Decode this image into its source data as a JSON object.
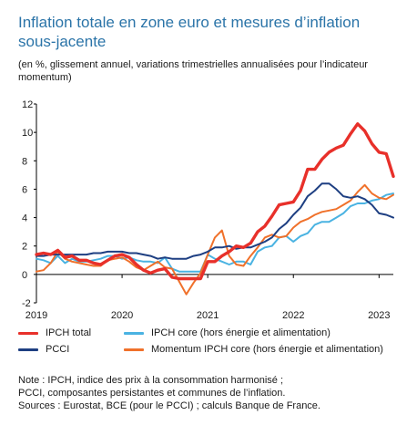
{
  "title": "Inflation totale en zone euro et mesures d’inflation sous-jacente",
  "subtitle": "(en %, glissement annuel, variations trimestrielles annualisées pour l’indicateur momentum)",
  "note_line1": "Note : IPCH, indice des prix à la consommation harmonisé ;",
  "note_line2": "PCCI, composantes persistantes et communes de l’inflation.",
  "sources": "Sources : Eurostat, BCE (pour le PCCI) ; calculs Banque de France.",
  "colors": {
    "ipch_total": "#e8302a",
    "pcci": "#1e3f82",
    "ipch_core": "#4ab3e2",
    "momentum": "#f0712b",
    "axis": "#000000"
  },
  "chart_data": {
    "type": "line",
    "x_start": "2019-01",
    "x_step": "month",
    "x_tick_labels": [
      "2019",
      "2020",
      "2021",
      "2022",
      "2023"
    ],
    "y_ticks": [
      -2,
      0,
      2,
      4,
      6,
      8,
      10,
      12
    ],
    "ylim": [
      -2,
      12
    ],
    "series": [
      {
        "name": "IPCH total",
        "color": "#e8302a",
        "values": [
          1.4,
          1.5,
          1.4,
          1.7,
          1.2,
          1.3,
          1.0,
          1.0,
          0.8,
          0.7,
          1.0,
          1.3,
          1.4,
          1.2,
          0.7,
          0.3,
          0.1,
          0.3,
          0.4,
          -0.2,
          -0.3,
          -0.3,
          -0.3,
          -0.3,
          0.9,
          0.9,
          1.3,
          1.6,
          2.0,
          1.9,
          2.2,
          3.0,
          3.4,
          4.1,
          4.9,
          5.0,
          5.1,
          5.9,
          7.4,
          7.4,
          8.1,
          8.6,
          8.9,
          9.1,
          9.9,
          10.6,
          10.1,
          9.2,
          8.6,
          8.5,
          6.9
        ]
      },
      {
        "name": "PCCI",
        "color": "#1e3f82",
        "values": [
          1.3,
          1.3,
          1.4,
          1.4,
          1.4,
          1.4,
          1.4,
          1.4,
          1.5,
          1.5,
          1.6,
          1.6,
          1.6,
          1.5,
          1.5,
          1.4,
          1.3,
          1.1,
          1.2,
          1.1,
          1.1,
          1.1,
          1.3,
          1.4,
          1.6,
          1.9,
          1.9,
          2.0,
          1.8,
          1.9,
          1.9,
          2.1,
          2.3,
          2.6,
          3.2,
          3.6,
          4.2,
          4.7,
          5.5,
          5.9,
          6.4,
          6.4,
          6.0,
          5.5,
          5.4,
          5.5,
          5.3,
          4.9,
          4.3,
          4.2,
          4.0
        ]
      },
      {
        "name": "IPCH core (hors énergie et alimentation)",
        "color": "#4ab3e2",
        "values": [
          1.1,
          1.0,
          0.8,
          1.3,
          0.8,
          1.1,
          0.9,
          0.9,
          1.0,
          1.1,
          1.3,
          1.3,
          1.1,
          1.2,
          1.0,
          0.9,
          0.9,
          0.8,
          1.2,
          0.4,
          0.2,
          0.2,
          0.2,
          0.2,
          1.4,
          1.1,
          0.9,
          0.7,
          0.9,
          0.9,
          0.7,
          1.6,
          1.9,
          2.0,
          2.6,
          2.7,
          2.3,
          2.7,
          2.9,
          3.5,
          3.7,
          3.7,
          4.0,
          4.3,
          4.8,
          5.0,
          5.0,
          5.2,
          5.3,
          5.6,
          5.7
        ]
      },
      {
        "name": "Momentum IPCH core (hors énergie et alimentation)",
        "color": "#f0712b",
        "values": [
          0.2,
          0.3,
          0.8,
          1.6,
          1.1,
          0.9,
          0.8,
          0.7,
          0.6,
          0.6,
          1.0,
          1.1,
          1.2,
          0.9,
          0.5,
          0.3,
          0.6,
          0.9,
          0.5,
          0.4,
          -0.5,
          -1.4,
          -0.6,
          0.1,
          1.4,
          2.6,
          3.1,
          1.3,
          0.7,
          0.6,
          1.3,
          1.9,
          2.6,
          2.8,
          2.6,
          2.7,
          3.3,
          3.7,
          3.9,
          4.2,
          4.4,
          4.5,
          4.6,
          4.9,
          5.2,
          5.8,
          6.3,
          5.7,
          5.4,
          5.3,
          5.6
        ]
      }
    ]
  }
}
